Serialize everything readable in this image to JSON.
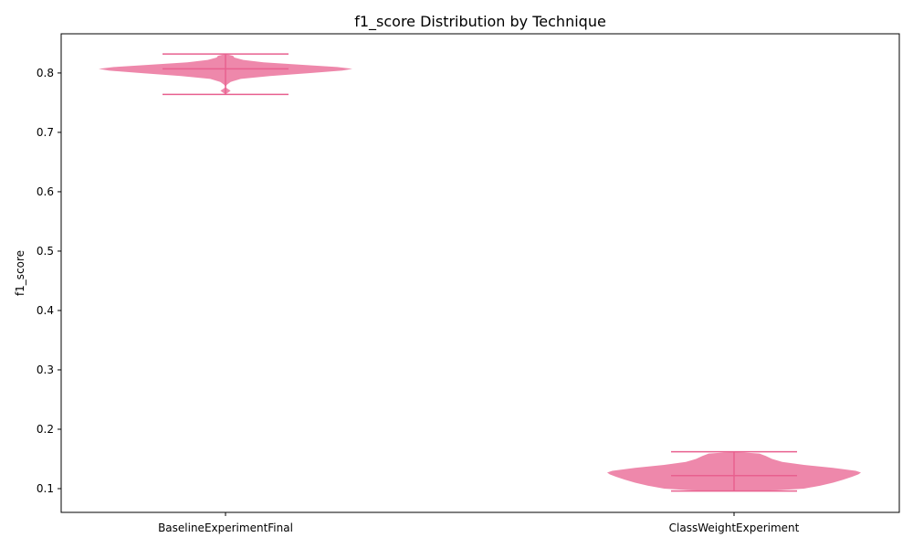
{
  "chart_data": {
    "type": "violin",
    "title": "f1_score Distribution by Technique",
    "xlabel": "",
    "ylabel": "f1_score",
    "ylim": [
      0.06,
      0.866
    ],
    "yticks": [
      0.1,
      0.2,
      0.3,
      0.4,
      0.5,
      0.6,
      0.7,
      0.8
    ],
    "ytick_labels": [
      "0.1",
      "0.2",
      "0.3",
      "0.4",
      "0.5",
      "0.6",
      "0.7",
      "0.8"
    ],
    "grid": false,
    "color": "#e8608f",
    "categories": [
      "BaselineExperimentFinal",
      "ClassWeightExperiment"
    ],
    "violins": [
      {
        "category": "BaselineExperimentFinal",
        "min": 0.764,
        "max": 0.832,
        "mean": 0.807,
        "profile": [
          [
            0.764,
            0.0
          ],
          [
            0.767,
            0.02
          ],
          [
            0.77,
            0.04
          ],
          [
            0.773,
            0.02
          ],
          [
            0.776,
            0.0
          ],
          [
            0.78,
            0.01
          ],
          [
            0.785,
            0.04
          ],
          [
            0.79,
            0.12
          ],
          [
            0.795,
            0.35
          ],
          [
            0.8,
            0.68
          ],
          [
            0.804,
            0.92
          ],
          [
            0.807,
            1.0
          ],
          [
            0.81,
            0.88
          ],
          [
            0.814,
            0.58
          ],
          [
            0.818,
            0.3
          ],
          [
            0.822,
            0.14
          ],
          [
            0.826,
            0.07
          ],
          [
            0.829,
            0.06
          ],
          [
            0.832,
            0.0
          ]
        ]
      },
      {
        "category": "ClassWeightExperiment",
        "min": 0.096,
        "max": 0.162,
        "mean": 0.122,
        "profile": [
          [
            0.096,
            0.0
          ],
          [
            0.097,
            0.33
          ],
          [
            0.1,
            0.55
          ],
          [
            0.105,
            0.68
          ],
          [
            0.11,
            0.78
          ],
          [
            0.115,
            0.86
          ],
          [
            0.12,
            0.93
          ],
          [
            0.124,
            0.98
          ],
          [
            0.127,
            1.0
          ],
          [
            0.13,
            0.96
          ],
          [
            0.135,
            0.78
          ],
          [
            0.14,
            0.55
          ],
          [
            0.145,
            0.38
          ],
          [
            0.15,
            0.3
          ],
          [
            0.155,
            0.25
          ],
          [
            0.159,
            0.2
          ],
          [
            0.162,
            0.0
          ]
        ]
      }
    ]
  }
}
